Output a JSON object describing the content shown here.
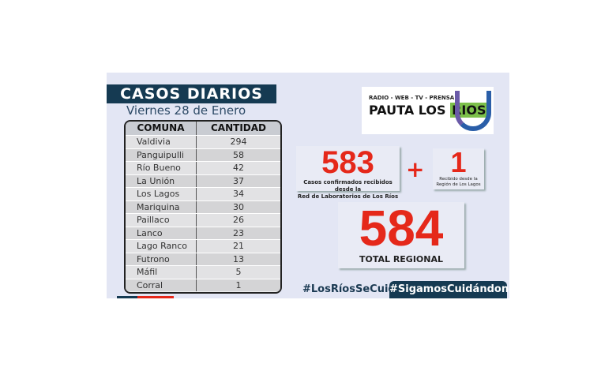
{
  "title": "CASOS DIARIOS",
  "date": "Viernes 28 de Enero",
  "table": {
    "headers": [
      "COMUNA",
      "CANTIDAD"
    ],
    "rows": [
      [
        "Valdivia",
        "294"
      ],
      [
        "Panguipulli",
        "58"
      ],
      [
        "Río Bueno",
        "42"
      ],
      [
        "La Unión",
        "37"
      ],
      [
        "Los Lagos",
        "34"
      ],
      [
        "Mariquina",
        "30"
      ],
      [
        "Paillaco",
        "26"
      ],
      [
        "Lanco",
        "23"
      ],
      [
        "Lago Ranco",
        "21"
      ],
      [
        "Futrono",
        "13"
      ],
      [
        "Máfil",
        "5"
      ],
      [
        "Corral",
        "1"
      ]
    ]
  },
  "logo": {
    "tagline": "RADIO - WEB - TV - PRENSA",
    "name_a": "PAUTA LOS ",
    "name_b": "RIOS"
  },
  "lab": {
    "value": "583",
    "caption_1": "Casos confirmados recibidos desde la",
    "caption_2": "Red de Laboratorios de Los Ríos"
  },
  "plus": "+",
  "other": {
    "value": "1",
    "caption_1": "Recibido desde la",
    "caption_2": "Región de Los Lagos"
  },
  "total": {
    "value": "584",
    "caption": "TOTAL REGIONAL"
  },
  "hashtags": [
    "#LosRíosSeCuida",
    "#SigamosCuidándonos"
  ],
  "colors": {
    "navy": "#153a52",
    "red": "#e5281a",
    "background": "#e3e6f4"
  }
}
